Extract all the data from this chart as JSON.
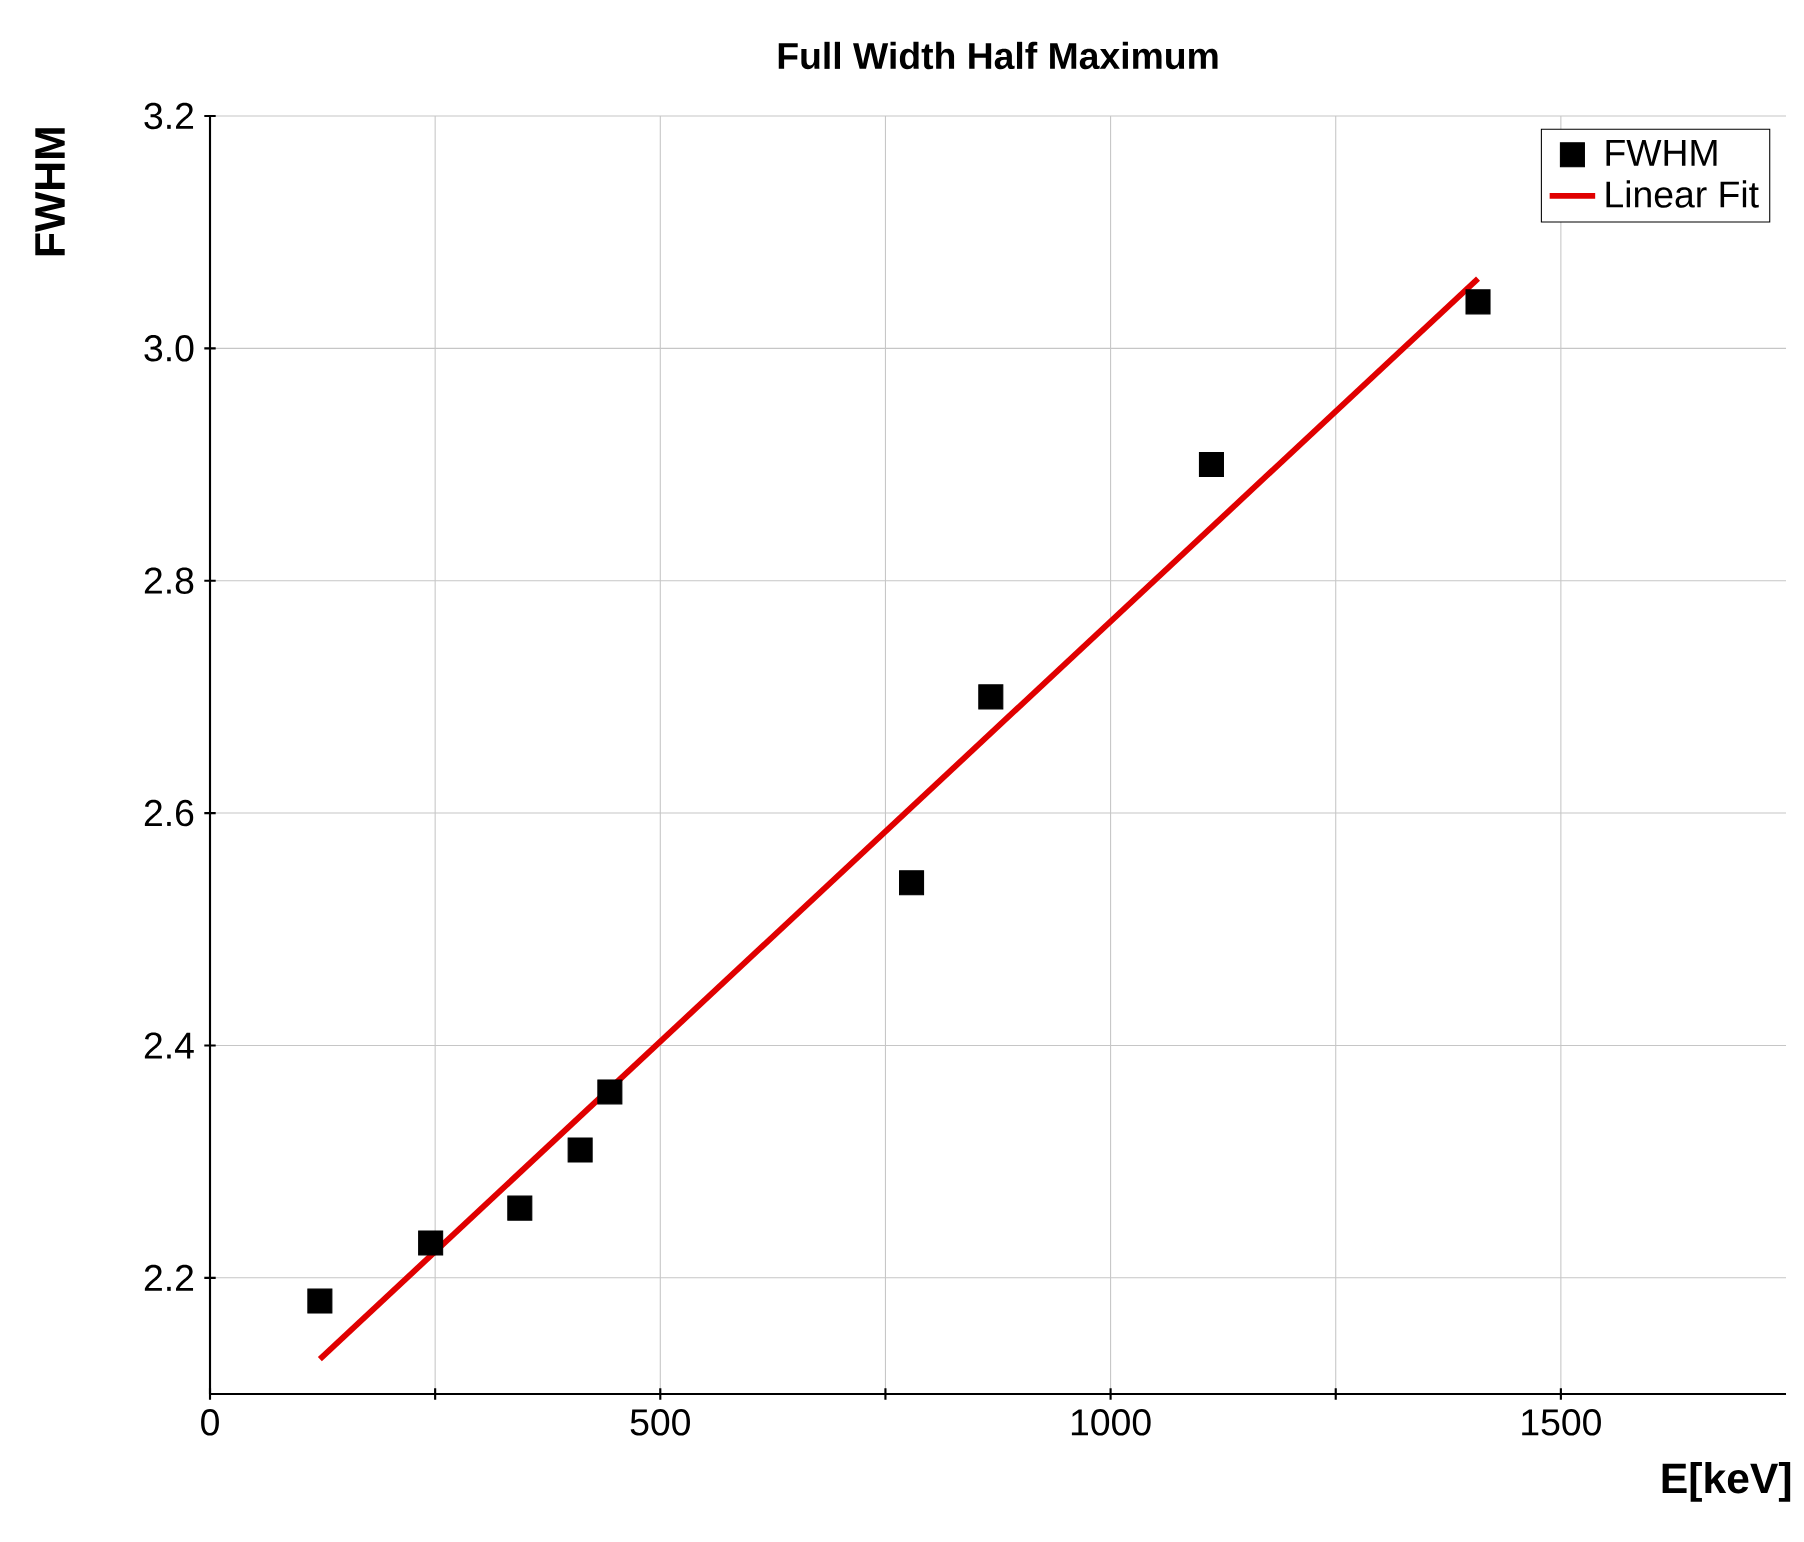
{
  "chart_data": {
    "type": "scatter",
    "title": "Full Width Half Maximum",
    "xlabel": "E[keV]",
    "ylabel": "FWHM",
    "series": [
      {
        "name": "FWHM",
        "type": "scatter",
        "marker": "square",
        "color": "#000000",
        "x": [
          122,
          245,
          344,
          411,
          444,
          779,
          867,
          1112,
          1408
        ],
        "values": [
          2.18,
          2.23,
          2.26,
          2.31,
          2.36,
          2.54,
          2.7,
          2.9,
          3.04
        ]
      },
      {
        "name": "Linear Fit",
        "type": "line",
        "line_style": "solid",
        "color": "#e00000",
        "x": [
          122,
          1408
        ],
        "values": [
          2.13,
          3.06
        ]
      }
    ],
    "xlim": [
      0,
      1750
    ],
    "ylim": [
      2.1,
      3.2
    ],
    "xticks": [
      0,
      {
        "value": 250,
        "label": null
      },
      500,
      {
        "value": 750,
        "label": null
      },
      1000,
      {
        "value": 1250,
        "label": null
      },
      1500
    ],
    "yticks": [
      2.2,
      2.4,
      2.6,
      2.8,
      {
        "value": 3.0,
        "label": "3.0"
      },
      3.2
    ],
    "grid": true,
    "legend": "top right"
  }
}
